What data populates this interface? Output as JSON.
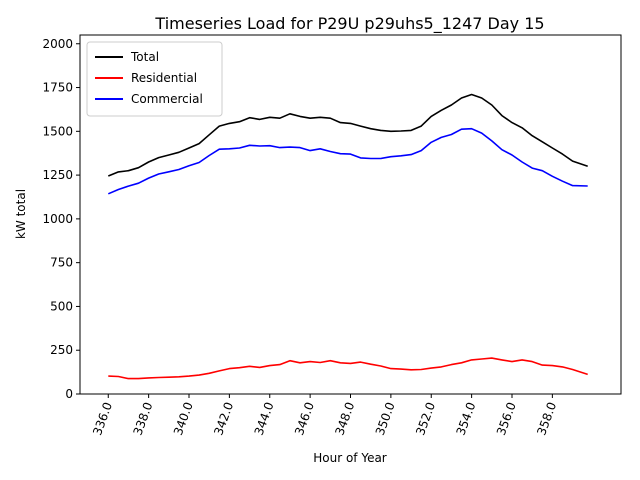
{
  "chart_data": {
    "type": "line",
    "title": "Timeseries Load for P29U p29uhs5_1247  Day 15",
    "xlabel": "Hour of Year",
    "ylabel": "kW total",
    "xlim": [
      334.6,
      361.4
    ],
    "ylim": [
      0,
      2050
    ],
    "xticks": [
      336,
      338,
      340,
      342,
      344,
      346,
      348,
      350,
      352,
      354,
      356,
      358
    ],
    "xtick_labels": [
      "336.0",
      "338.0",
      "340.0",
      "342.0",
      "344.0",
      "346.0",
      "348.0",
      "350.0",
      "352.0",
      "354.0",
      "356.0",
      "358.0"
    ],
    "yticks": [
      0,
      250,
      500,
      750,
      1000,
      1250,
      1500,
      1750,
      2000
    ],
    "ytick_labels": [
      "0",
      "250",
      "500",
      "750",
      "1000",
      "1250",
      "1500",
      "1750",
      "2000"
    ],
    "legend_position": "top-left",
    "x": [
      336.0,
      336.5,
      337.0,
      337.5,
      338.0,
      338.5,
      339.0,
      339.5,
      340.0,
      340.5,
      341.0,
      341.5,
      342.0,
      342.5,
      343.0,
      343.5,
      344.0,
      344.5,
      345.0,
      345.5,
      346.0,
      346.5,
      347.0,
      347.5,
      348.0,
      348.5,
      349.0,
      349.5,
      350.0,
      350.5,
      351.0,
      351.5,
      352.0,
      352.5,
      353.0,
      353.5,
      354.0,
      354.5,
      355.0,
      355.5,
      356.0,
      356.5,
      357.0,
      357.5,
      358.0,
      358.5,
      359.0,
      359.75
    ],
    "series": [
      {
        "name": "Total",
        "color": "#000000",
        "values": [
          1245,
          1268,
          1275,
          1292,
          1325,
          1350,
          1365,
          1380,
          1405,
          1430,
          1480,
          1530,
          1545,
          1555,
          1578,
          1568,
          1580,
          1575,
          1600,
          1585,
          1575,
          1580,
          1575,
          1550,
          1545,
          1530,
          1515,
          1505,
          1500,
          1502,
          1505,
          1530,
          1585,
          1620,
          1650,
          1690,
          1710,
          1690,
          1650,
          1590,
          1550,
          1520,
          1475,
          1440,
          1405,
          1370,
          1330,
          1300
        ]
      },
      {
        "name": "Residential",
        "color": "#ff0000",
        "values": [
          102,
          100,
          88,
          88,
          92,
          94,
          96,
          98,
          102,
          108,
          118,
          132,
          145,
          150,
          158,
          152,
          162,
          168,
          190,
          178,
          185,
          180,
          190,
          178,
          175,
          182,
          170,
          160,
          145,
          142,
          138,
          140,
          148,
          155,
          168,
          178,
          195,
          200,
          205,
          195,
          185,
          195,
          185,
          165,
          162,
          155,
          140,
          112
        ]
      },
      {
        "name": "Commercial",
        "color": "#0000ff",
        "values": [
          1143,
          1168,
          1187,
          1204,
          1233,
          1256,
          1269,
          1282,
          1303,
          1322,
          1362,
          1398,
          1400,
          1405,
          1420,
          1416,
          1418,
          1407,
          1410,
          1407,
          1390,
          1400,
          1385,
          1372,
          1370,
          1348,
          1345,
          1345,
          1355,
          1360,
          1367,
          1390,
          1437,
          1465,
          1482,
          1512,
          1515,
          1490,
          1445,
          1395,
          1365,
          1325,
          1290,
          1275,
          1243,
          1215,
          1190,
          1188
        ]
      }
    ]
  }
}
